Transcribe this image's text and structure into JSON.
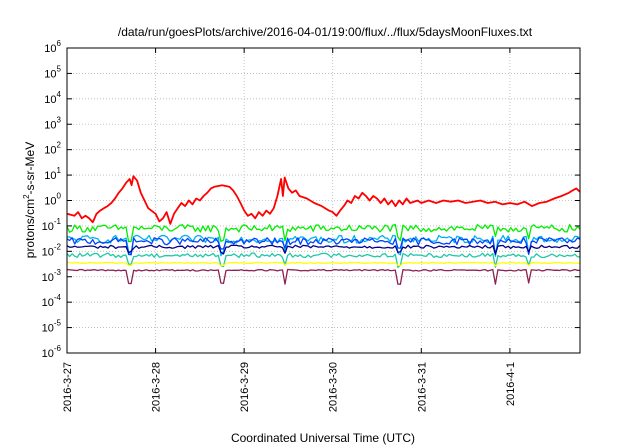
{
  "chart_data": {
    "type": "line",
    "title": "/data/run/goesPlots/archive/2016-04-01/19:00/flux/../flux/5daysMoonFluxes.txt",
    "xlabel": "Coordinated Universal Time (UTC)",
    "ylabel": "protons/cm2-s-sr-MeV",
    "ylabel_parts": {
      "pre": "protons/cm",
      "sup": "2",
      "post": "-s-sr-MeV"
    },
    "y_scale": "log",
    "ylim": [
      1e-06,
      1000000.0
    ],
    "y_tick_exponents": [
      "-6",
      "-5",
      "-4",
      "-3",
      "-2",
      "-1",
      "0",
      "1",
      "2",
      "3",
      "4",
      "5",
      "6"
    ],
    "y_tick_base": "10",
    "xlim": [
      "2016-03-27 00:00",
      "2016-04-01 19:00"
    ],
    "x_ticks": [
      "2016-3-27",
      "2016-3-28",
      "2016-3-29",
      "2016-3-30",
      "2016-3-31",
      "2016-4-1"
    ],
    "grid": true,
    "legend": "none",
    "series": [
      {
        "color": "#ff0000",
        "points": [
          [
            "2016-03-27 00:00",
            0.3
          ],
          [
            "2016-03-27 02:00",
            0.25
          ],
          [
            "2016-03-27 03:00",
            0.35
          ],
          [
            "2016-03-27 04:00",
            0.2
          ],
          [
            "2016-03-27 05:00",
            0.25
          ],
          [
            "2016-03-27 06:00",
            0.2
          ],
          [
            "2016-03-27 07:00",
            0.14
          ],
          [
            "2016-03-27 08:00",
            0.3
          ],
          [
            "2016-03-27 09:00",
            0.4
          ],
          [
            "2016-03-27 10:00",
            0.5
          ],
          [
            "2016-03-27 11:00",
            0.6
          ],
          [
            "2016-03-27 12:00",
            0.8
          ],
          [
            "2016-03-27 13:00",
            1.2
          ],
          [
            "2016-03-27 14:00",
            2.0
          ],
          [
            "2016-03-27 15:00",
            3.0
          ],
          [
            "2016-03-27 16:00",
            5.0
          ],
          [
            "2016-03-27 17:00",
            7.0
          ],
          [
            "2016-03-27 17:30",
            4.0
          ],
          [
            "2016-03-27 18:00",
            9.0
          ],
          [
            "2016-03-27 19:00",
            6.0
          ],
          [
            "2016-03-27 20:00",
            2.0
          ],
          [
            "2016-03-27 21:00",
            1.0
          ],
          [
            "2016-03-27 22:00",
            0.5
          ],
          [
            "2016-03-28 00:00",
            0.3
          ],
          [
            "2016-03-28 01:00",
            0.15
          ],
          [
            "2016-03-28 02:00",
            0.2
          ],
          [
            "2016-03-28 03:00",
            0.35
          ],
          [
            "2016-03-28 04:00",
            0.12
          ],
          [
            "2016-03-28 05:00",
            0.3
          ],
          [
            "2016-03-28 06:00",
            0.5
          ],
          [
            "2016-03-28 07:00",
            0.8
          ],
          [
            "2016-03-28 08:00",
            0.6
          ],
          [
            "2016-03-28 09:00",
            1.0
          ],
          [
            "2016-03-28 10:00",
            0.7
          ],
          [
            "2016-03-28 11:00",
            1.2
          ],
          [
            "2016-03-28 12:00",
            1.0
          ],
          [
            "2016-03-28 13:00",
            1.5
          ],
          [
            "2016-03-28 14:00",
            2.0
          ],
          [
            "2016-03-28 15:00",
            3.0
          ],
          [
            "2016-03-28 16:00",
            3.5
          ],
          [
            "2016-03-28 18:00",
            4.0
          ],
          [
            "2016-03-28 20:00",
            3.5
          ],
          [
            "2016-03-28 21:00",
            2.5
          ],
          [
            "2016-03-28 22:00",
            1.5
          ],
          [
            "2016-03-28 23:00",
            0.8
          ],
          [
            "2016-03-29 00:00",
            0.4
          ],
          [
            "2016-03-29 01:00",
            0.25
          ],
          [
            "2016-03-29 02:00",
            0.3
          ],
          [
            "2016-03-29 03:00",
            0.2
          ],
          [
            "2016-03-29 04:00",
            0.35
          ],
          [
            "2016-03-29 05:00",
            0.25
          ],
          [
            "2016-03-29 06:00",
            0.4
          ],
          [
            "2016-03-29 07:00",
            0.3
          ],
          [
            "2016-03-29 08:00",
            0.5
          ],
          [
            "2016-03-29 09:00",
            1.5
          ],
          [
            "2016-03-29 10:00",
            7.0
          ],
          [
            "2016-03-29 10:30",
            1.5
          ],
          [
            "2016-03-29 11:00",
            8.0
          ],
          [
            "2016-03-29 12:00",
            3.0
          ],
          [
            "2016-03-29 13:00",
            2.0
          ],
          [
            "2016-03-29 14:00",
            2.5
          ],
          [
            "2016-03-29 15:00",
            1.5
          ],
          [
            "2016-03-29 17:00",
            1.2
          ],
          [
            "2016-03-29 19:00",
            0.8
          ],
          [
            "2016-03-29 21:00",
            0.6
          ],
          [
            "2016-03-29 23:00",
            0.4
          ],
          [
            "2016-03-30 00:00",
            0.35
          ],
          [
            "2016-03-30 01:00",
            0.25
          ],
          [
            "2016-03-30 02:00",
            0.4
          ],
          [
            "2016-03-30 03:00",
            0.6
          ],
          [
            "2016-03-30 04:00",
            1.0
          ],
          [
            "2016-03-30 05:00",
            0.8
          ],
          [
            "2016-03-30 06:00",
            1.5
          ],
          [
            "2016-03-30 07:00",
            1.2
          ],
          [
            "2016-03-30 08:00",
            2.0
          ],
          [
            "2016-03-30 09:00",
            1.5
          ],
          [
            "2016-03-30 10:00",
            1.0
          ],
          [
            "2016-03-30 11:00",
            1.5
          ],
          [
            "2016-03-30 12:00",
            1.2
          ],
          [
            "2016-03-30 13:00",
            0.8
          ],
          [
            "2016-03-30 14:00",
            1.2
          ],
          [
            "2016-03-30 15:00",
            0.7
          ],
          [
            "2016-03-30 16:00",
            1.0
          ],
          [
            "2016-03-30 17:00",
            0.6
          ],
          [
            "2016-03-30 18:00",
            1.0
          ],
          [
            "2016-03-30 19:00",
            0.7
          ],
          [
            "2016-03-30 20:00",
            1.2
          ],
          [
            "2016-03-30 21:00",
            0.8
          ],
          [
            "2016-03-30 23:00",
            1.0
          ],
          [
            "2016-03-31 00:00",
            0.8
          ],
          [
            "2016-03-31 02:00",
            1.0
          ],
          [
            "2016-03-31 04:00",
            0.8
          ],
          [
            "2016-03-31 06:00",
            1.0
          ],
          [
            "2016-03-31 08:00",
            0.9
          ],
          [
            "2016-03-31 10:00",
            1.0
          ],
          [
            "2016-03-31 12:00",
            0.8
          ],
          [
            "2016-03-31 14:00",
            0.9
          ],
          [
            "2016-03-31 16:00",
            1.0
          ],
          [
            "2016-03-31 18:00",
            0.8
          ],
          [
            "2016-03-31 20:00",
            0.9
          ],
          [
            "2016-03-31 22:00",
            0.7
          ],
          [
            "2016-04-01 00:00",
            0.8
          ],
          [
            "2016-04-01 02:00",
            0.7
          ],
          [
            "2016-04-01 04:00",
            0.9
          ],
          [
            "2016-04-01 06:00",
            0.6
          ],
          [
            "2016-04-01 08:00",
            0.8
          ],
          [
            "2016-04-01 10:00",
            0.9
          ],
          [
            "2016-04-01 12:00",
            1.2
          ],
          [
            "2016-04-01 14:00",
            1.5
          ],
          [
            "2016-04-01 16:00",
            2.0
          ],
          [
            "2016-04-01 17:00",
            2.5
          ],
          [
            "2016-04-01 18:00",
            3.0
          ],
          [
            "2016-04-01 19:00",
            2.2
          ]
        ]
      },
      {
        "color": "#00ee00",
        "base": 0.08,
        "noise": 0.6,
        "dip_factor": 0.35
      },
      {
        "color": "#00b0f0",
        "base": 0.03,
        "noise": 0.6,
        "dip_factor": 0.3
      },
      {
        "color": "#0044ff",
        "base": 0.025,
        "noise": 0.55,
        "dip_factor": 0.4
      },
      {
        "color": "#00008b",
        "base": 0.015,
        "noise": 0.25,
        "dip_factor": 0.6
      },
      {
        "color": "#20c8a8",
        "base": 0.007,
        "noise": 0.35,
        "dip_factor": 0.4
      },
      {
        "color": "#ffff00",
        "base": 0.0035,
        "noise": 0.08,
        "dip_factor": 0.8
      },
      {
        "color": "#8b2252",
        "base": 0.0018,
        "noise": 0.12,
        "dip_factor": 0.3
      }
    ]
  }
}
